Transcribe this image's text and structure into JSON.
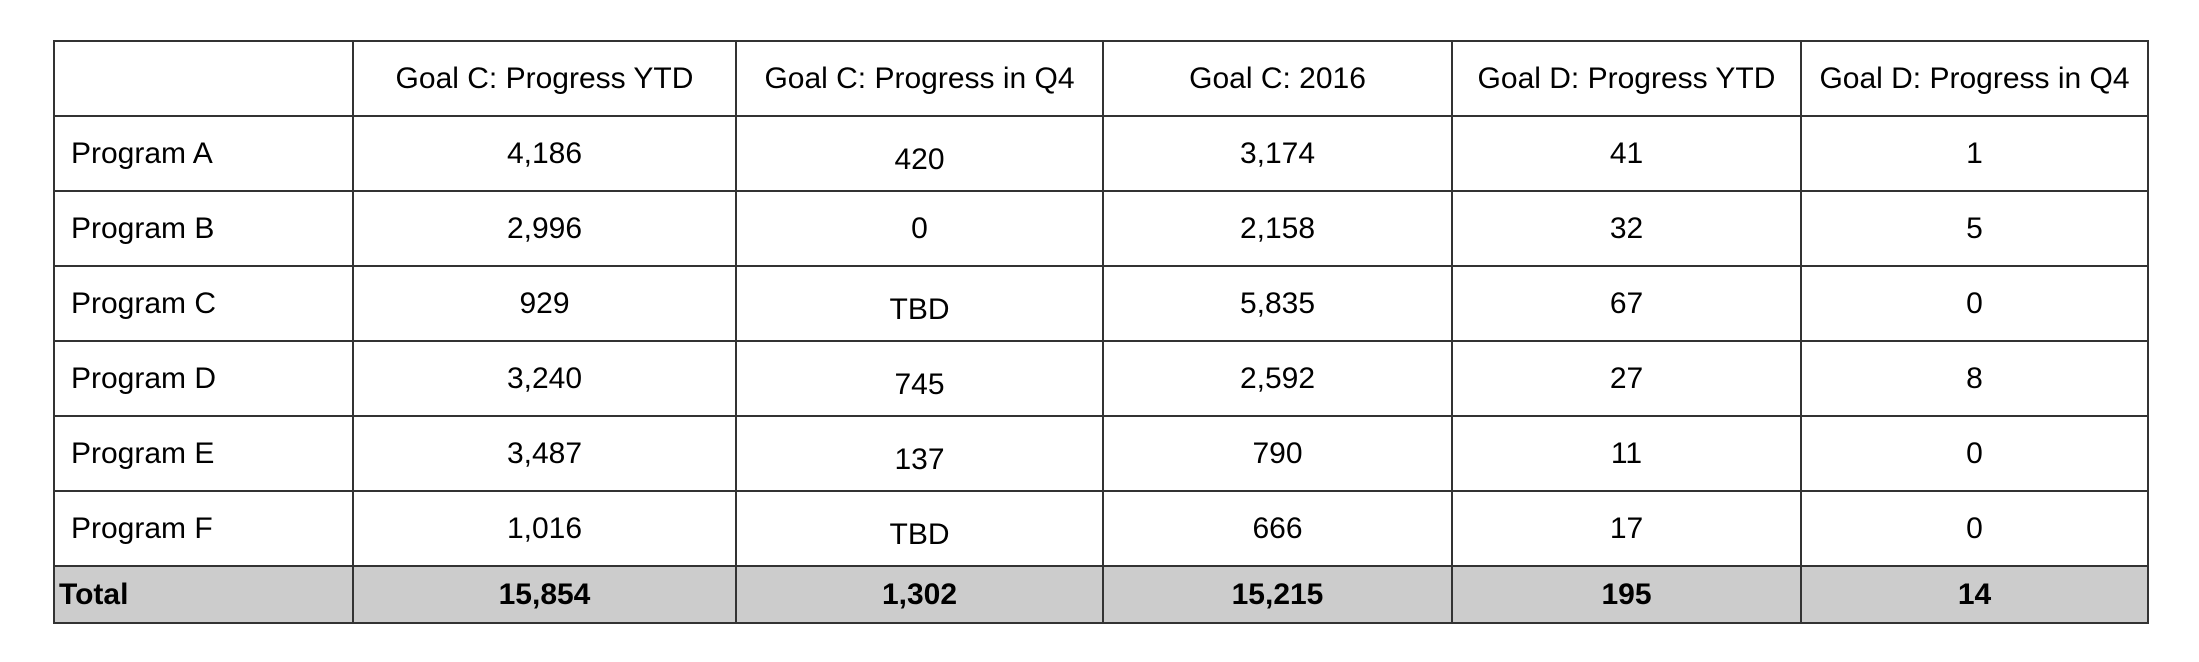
{
  "table": {
    "headers": [
      "",
      "Goal C: Progress YTD",
      "Goal C: Progress in Q4",
      "Goal C: 2016",
      "Goal D: Progress YTD",
      "Goal D: Progress in Q4"
    ],
    "rows": [
      [
        "Program A",
        "4,186",
        "420",
        "3,174",
        "41",
        "1"
      ],
      [
        "Program B",
        "2,996",
        "0",
        "2,158",
        "32",
        "5"
      ],
      [
        "Program C",
        "929",
        "TBD",
        "5,835",
        "67",
        "0"
      ],
      [
        "Program D",
        "3,240",
        "745",
        "2,592",
        "27",
        "8"
      ],
      [
        "Program E",
        "3,487",
        "137",
        "790",
        "11",
        "0"
      ],
      [
        "Program F",
        "1,016",
        "TBD",
        "666",
        "17",
        "0"
      ]
    ],
    "total": [
      "Total",
      "15,854",
      "1,302",
      "15,215",
      "195",
      "14"
    ]
  },
  "colors": {
    "border": "#333333",
    "total_background": "#cccccc",
    "background": "#ffffff"
  }
}
